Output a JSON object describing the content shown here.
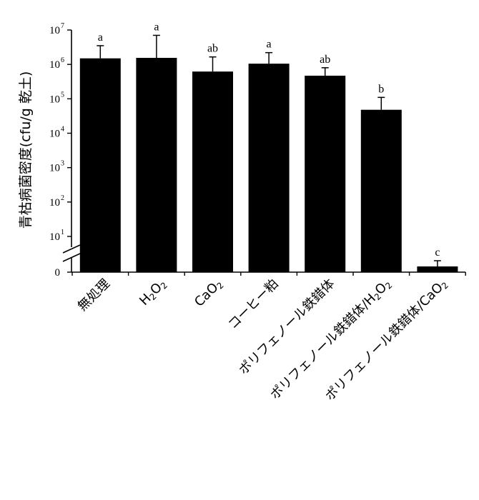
{
  "chart_data": {
    "type": "bar",
    "ylabel": "青枯病菌密度(cfu/g 乾土)",
    "yscale": "log10 with broken axis at 0",
    "ylim": [
      1,
      10000000
    ],
    "yticks": [
      {
        "base": "0",
        "exp": ""
      },
      {
        "base": "10",
        "exp": "1"
      },
      {
        "base": "10",
        "exp": "2"
      },
      {
        "base": "10",
        "exp": "3"
      },
      {
        "base": "10",
        "exp": "4"
      },
      {
        "base": "10",
        "exp": "5"
      },
      {
        "base": "10",
        "exp": "6"
      },
      {
        "base": "10",
        "exp": "7"
      }
    ],
    "categories": [
      [
        {
          "t": "無処理",
          "sub": false
        }
      ],
      [
        {
          "t": "H",
          "sub": false
        },
        {
          "t": "2",
          "sub": true
        },
        {
          "t": "O",
          "sub": false
        },
        {
          "t": "2",
          "sub": true
        }
      ],
      [
        {
          "t": "CaO",
          "sub": false
        },
        {
          "t": "2",
          "sub": true
        }
      ],
      [
        {
          "t": "コーヒー粕",
          "sub": false
        }
      ],
      [
        {
          "t": "ポリフェノール鉄錯体",
          "sub": false
        }
      ],
      [
        {
          "t": "ポリフェノール鉄錯体/H",
          "sub": false
        },
        {
          "t": "2",
          "sub": true
        },
        {
          "t": "O",
          "sub": false
        },
        {
          "t": "2",
          "sub": true
        }
      ],
      [
        {
          "t": "ポリフェノール鉄錯体/CaO",
          "sub": false
        },
        {
          "t": "2",
          "sub": true
        }
      ]
    ],
    "values": [
      1500000,
      1550000,
      620000,
      1050000,
      470000,
      48000,
      0
    ],
    "error_upper": [
      3500000,
      7000000,
      1650000,
      2200000,
      800000,
      110000,
      0
    ],
    "letters": [
      "a",
      "a",
      "ab",
      "a",
      "ab",
      "b",
      "c"
    ],
    "grid": false,
    "legend": false,
    "colors": {
      "bar": "#000000",
      "axis": "#000000",
      "background": "#ffffff"
    }
  }
}
